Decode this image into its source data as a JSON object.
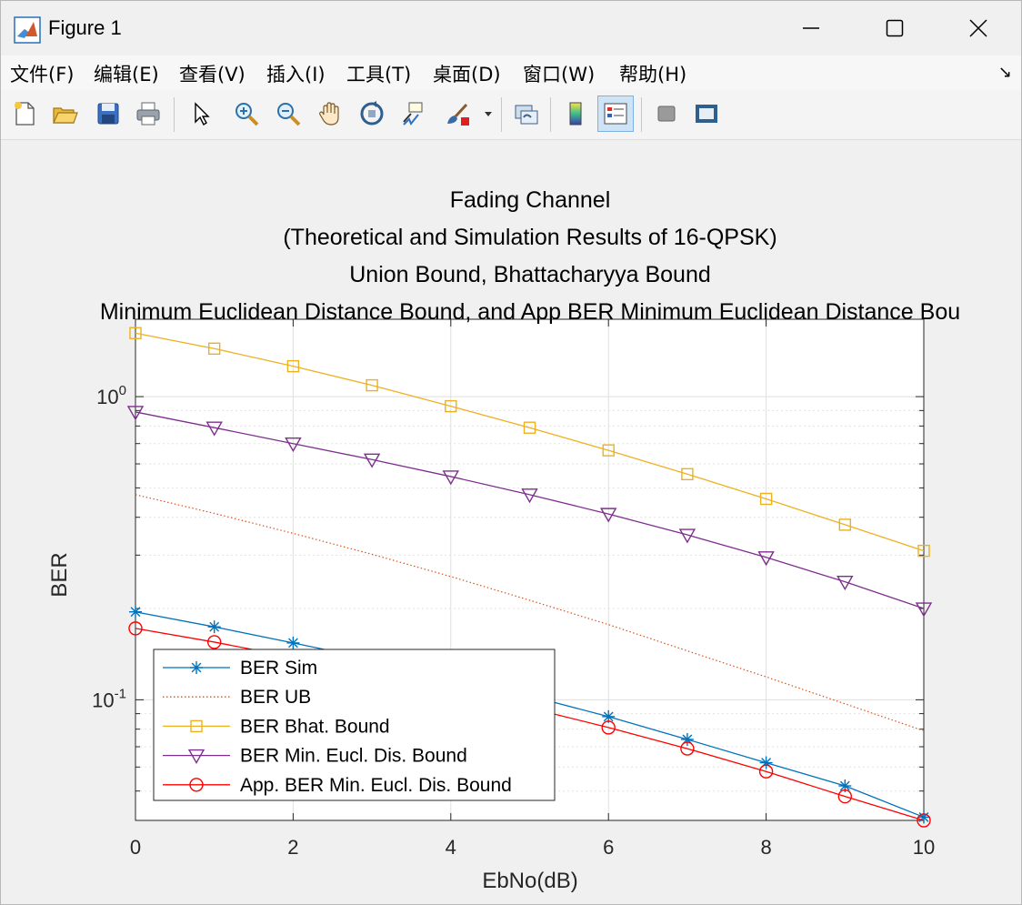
{
  "window": {
    "title": "Figure 1"
  },
  "menu": [
    "文件(F)",
    "编辑(E)",
    "查看(V)",
    "插入(I)",
    "工具(T)",
    "桌面(D)",
    "窗口(W)",
    "帮助(H)"
  ],
  "toolbar": {
    "icons": [
      "new-figure-icon",
      "open-file-icon",
      "save-icon",
      "print-icon",
      "select-arrow-icon",
      "zoom-in-icon",
      "zoom-out-icon",
      "pan-hand-icon",
      "rotate-3d-icon",
      "data-cursor-icon",
      "brush-icon",
      "brush-dropdown-icon",
      "link-plot-icon",
      "colorbar-icon",
      "legend-icon",
      "hide-plot-tools-icon",
      "show-plot-tools-icon"
    ]
  },
  "chart_data": {
    "type": "line",
    "title": [
      "Fading Channel",
      "(Theoretical and Simulation Results of 16-QPSK)",
      "Union Bound, Bhattacharyya Bound",
      "Minimum Euclidean Distance Bound, and App BER Minimum Euclidean Distance Bou"
    ],
    "xlabel": "EbNo(dB)",
    "ylabel": "BER",
    "xlim": [
      0,
      10
    ],
    "ylim": [
      0.04,
      1.8
    ],
    "yscale": "log",
    "grid": true,
    "xticks": [
      "0",
      "2",
      "4",
      "6",
      "8",
      "10"
    ],
    "yticks": [
      {
        "base": "10",
        "exp": "0"
      },
      {
        "base": "10",
        "exp": "-1"
      }
    ],
    "legend_position": "bottom-left",
    "x": [
      0,
      1,
      2,
      3,
      4,
      5,
      6,
      7,
      8,
      9,
      10
    ],
    "series": [
      {
        "name": "BER Sim",
        "color": "#0072bd",
        "marker": "asterisk",
        "values": [
          0.195,
          0.174,
          0.154,
          0.136,
          0.119,
          0.103,
          0.088,
          0.074,
          0.062,
          0.052,
          0.041
        ]
      },
      {
        "name": "BER UB",
        "color": "#d95319",
        "marker": "none",
        "dotted": true,
        "values": [
          0.475,
          0.412,
          0.354,
          0.302,
          0.255,
          0.213,
          0.177,
          0.145,
          0.119,
          0.097,
          0.079
        ]
      },
      {
        "name": "BER Bhat. Bound",
        "color": "#edb120",
        "marker": "square",
        "values": [
          1.62,
          1.44,
          1.26,
          1.09,
          0.93,
          0.79,
          0.665,
          0.555,
          0.46,
          0.378,
          0.31
        ]
      },
      {
        "name": "BER Min. Eucl. Dis. Bound",
        "color": "#7e2f8e",
        "marker": "triangle-down",
        "values": [
          0.89,
          0.79,
          0.7,
          0.62,
          0.545,
          0.475,
          0.41,
          0.35,
          0.295,
          0.245,
          0.2
        ]
      },
      {
        "name": "App. BER Min. Eucl. Dis. Bound",
        "color": "#ff0000",
        "marker": "circle",
        "values": [
          0.172,
          0.155,
          0.138,
          0.123,
          0.108,
          0.094,
          0.081,
          0.069,
          0.058,
          0.048,
          0.04
        ]
      }
    ]
  }
}
